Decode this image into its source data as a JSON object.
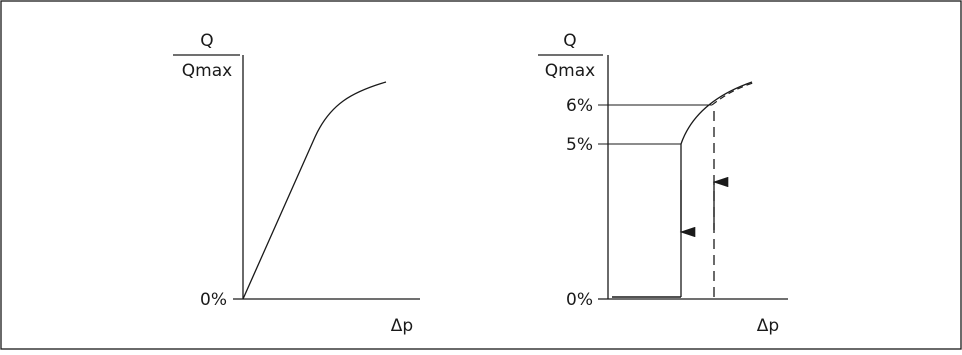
{
  "left_graph": {
    "y_label_numerator": "Q",
    "y_label_denominator": "Qmax",
    "x_label": "Δp",
    "y_tick_zero": "0%"
  },
  "right_graph": {
    "y_label_numerator": "Q",
    "y_label_denominator": "Qmax",
    "x_label": "Δp",
    "y_tick_zero": "0%",
    "y_tick_low": "5%",
    "y_tick_high": "6%"
  }
}
